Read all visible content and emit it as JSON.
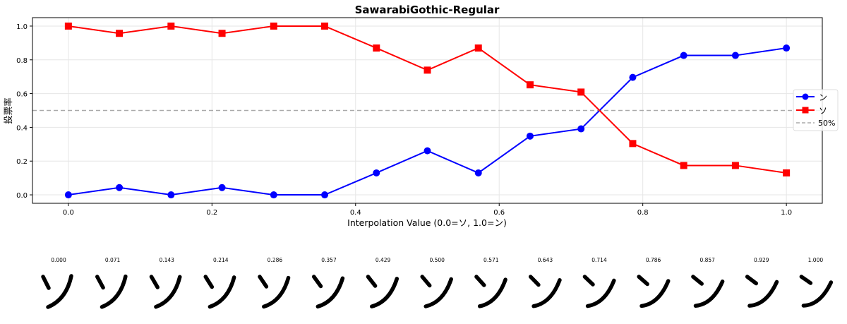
{
  "chart_data": {
    "type": "line",
    "title": "SawarabiGothic-Regular",
    "xlabel": "Interpolation Value (0.0=ソ, 1.0=ン)",
    "ylabel": "投票率",
    "xlim": [
      -0.05,
      1.05
    ],
    "ylim": [
      -0.05,
      1.05
    ],
    "xticks": [
      0.0,
      0.2,
      0.4,
      0.6,
      0.8,
      1.0
    ],
    "xtick_labels": [
      "0.0",
      "0.2",
      "0.4",
      "0.6",
      "0.8",
      "1.0"
    ],
    "yticks": [
      0.0,
      0.2,
      0.4,
      0.6,
      0.8,
      1.0
    ],
    "ytick_labels": [
      "0.0",
      "0.2",
      "0.4",
      "0.6",
      "0.8",
      "1.0"
    ],
    "grid": true,
    "legend_position": "center-right",
    "x": [
      0.0,
      0.071,
      0.143,
      0.214,
      0.286,
      0.357,
      0.429,
      0.5,
      0.571,
      0.643,
      0.714,
      0.786,
      0.857,
      0.929,
      1.0
    ],
    "series": [
      {
        "name": "ン",
        "color": "#0000ff",
        "marker": "circle",
        "values": [
          0.0,
          0.043,
          0.0,
          0.043,
          0.0,
          0.0,
          0.13,
          0.261,
          0.13,
          0.348,
          0.391,
          0.696,
          0.826,
          0.826,
          0.87
        ]
      },
      {
        "name": "ソ",
        "color": "#ff0000",
        "marker": "square",
        "values": [
          1.0,
          0.957,
          1.0,
          0.957,
          1.0,
          1.0,
          0.87,
          0.739,
          0.87,
          0.652,
          0.609,
          0.304,
          0.174,
          0.174,
          0.13
        ]
      }
    ],
    "reference_line": {
      "name": "50%",
      "value": 0.5,
      "color": "#aaaaaa"
    }
  },
  "samples": {
    "labels": [
      "0.000",
      "0.071",
      "0.143",
      "0.214",
      "0.286",
      "0.357",
      "0.429",
      "0.500",
      "0.571",
      "0.643",
      "0.714",
      "0.786",
      "0.857",
      "0.929",
      "1.000"
    ]
  }
}
